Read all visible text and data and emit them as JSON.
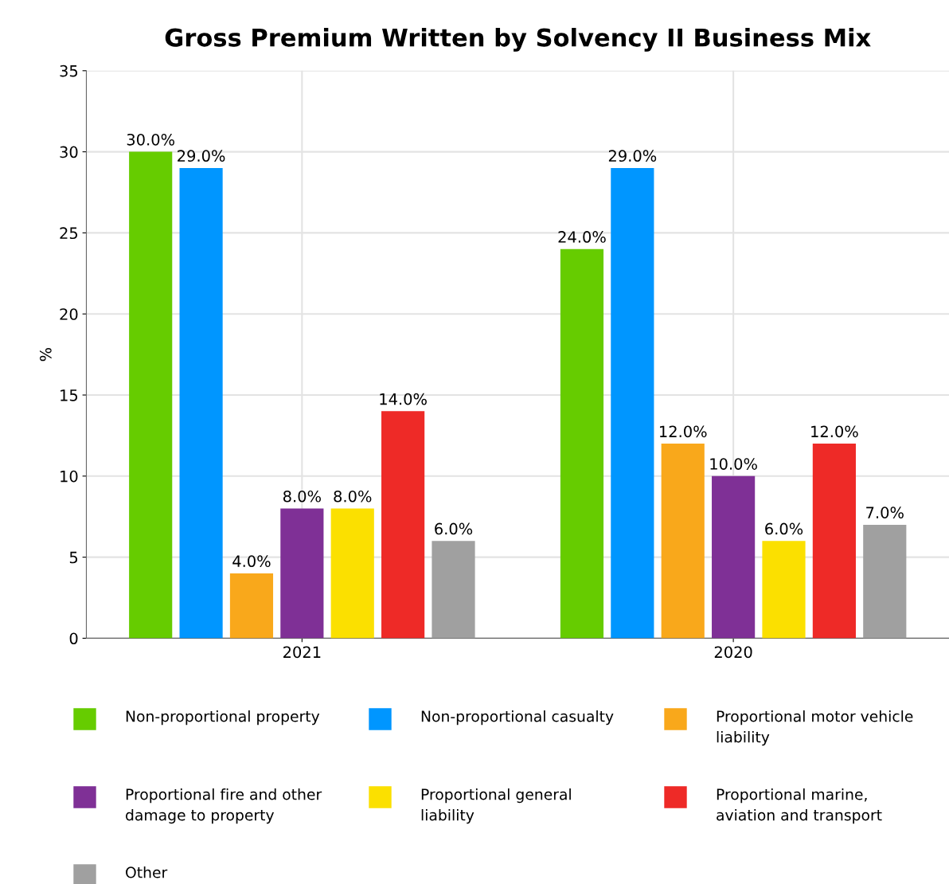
{
  "chart_data": {
    "type": "bar",
    "title": "Gross Premium Written by Solvency II Business Mix",
    "ylabel": "%",
    "categories": [
      "2021",
      "2020"
    ],
    "series": [
      {
        "name": "Non-proportional property",
        "color": "#66cc00",
        "values": [
          30.0,
          24.0
        ],
        "value_labels": [
          "30.0%",
          "24.0%"
        ]
      },
      {
        "name": "Non-proportional casualty",
        "color": "#0096ff",
        "values": [
          29.0,
          29.0
        ],
        "value_labels": [
          "29.0%",
          "29.0%"
        ]
      },
      {
        "name": "Proportional motor vehicle liability",
        "color": "#f9a81b",
        "values": [
          4.0,
          12.0
        ],
        "value_labels": [
          "4.0%",
          "12.0%"
        ]
      },
      {
        "name": "Proportional fire and other damage to property",
        "color": "#7f3096",
        "values": [
          8.0,
          10.0
        ],
        "value_labels": [
          "8.0%",
          "10.0%"
        ]
      },
      {
        "name": "Proportional general liability",
        "color": "#fbe000",
        "values": [
          8.0,
          6.0
        ],
        "value_labels": [
          "8.0%",
          "6.0%"
        ]
      },
      {
        "name": "Proportional marine, aviation and transport",
        "color": "#ee2a27",
        "values": [
          14.0,
          12.0
        ],
        "value_labels": [
          "14.0%",
          "12.0%"
        ]
      },
      {
        "name": "Other",
        "color": "#a0a0a0",
        "values": [
          6.0,
          7.0
        ],
        "value_labels": [
          "6.0%",
          "7.0%"
        ]
      }
    ],
    "ylim": [
      0,
      35
    ],
    "yticks": [
      0,
      5,
      10,
      15,
      20,
      25,
      30,
      35
    ],
    "grid": true,
    "legend": "bottom"
  }
}
